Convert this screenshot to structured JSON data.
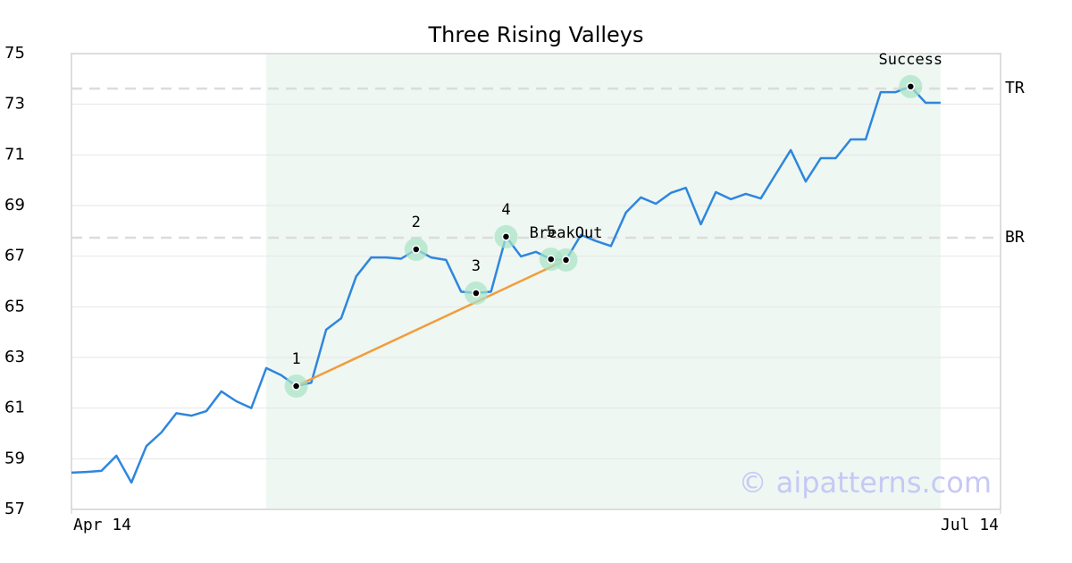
{
  "chart_data": {
    "type": "line",
    "title": "Three Rising Valleys",
    "x": [
      0,
      1,
      2,
      3,
      4,
      5,
      6,
      7,
      8,
      9,
      10,
      11,
      12,
      13,
      14,
      15,
      16,
      17,
      18,
      19,
      20,
      21,
      22,
      23,
      24,
      25,
      26,
      27,
      28,
      29,
      30,
      31,
      32,
      33,
      34,
      35,
      36,
      37,
      38,
      39,
      40,
      41,
      42,
      43,
      44,
      45,
      46,
      47,
      48,
      49,
      50,
      51,
      52,
      53,
      54,
      55,
      56,
      57,
      58
    ],
    "values": [
      58.45,
      58.48,
      58.52,
      59.12,
      58.06,
      59.5,
      60.04,
      60.8,
      60.7,
      60.88,
      61.66,
      61.27,
      61.0,
      62.58,
      62.3,
      61.87,
      62.0,
      64.1,
      64.55,
      66.2,
      66.95,
      66.95,
      66.9,
      67.27,
      66.95,
      66.85,
      65.6,
      65.54,
      65.6,
      67.77,
      66.99,
      67.17,
      66.88,
      66.85,
      67.84,
      67.6,
      67.4,
      68.72,
      69.32,
      69.07,
      69.5,
      69.7,
      68.26,
      69.53,
      69.25,
      69.46,
      69.28,
      70.24,
      71.19,
      69.95,
      70.87,
      70.87,
      71.61,
      71.61,
      73.48,
      73.48,
      73.7,
      73.06,
      73.06
    ],
    "color": "#2e86de",
    "xlim": [
      0,
      62
    ],
    "xticks": [
      {
        "value": 0,
        "label": "Apr 14"
      },
      {
        "value": 62,
        "label": "Jul 14"
      }
    ],
    "ylim": [
      57,
      75
    ],
    "yticks": [
      57,
      59,
      61,
      63,
      65,
      67,
      69,
      71,
      73,
      75
    ],
    "grid": true,
    "highlight_x": [
      13,
      58
    ],
    "highlight_color": "#eef7f2",
    "reference_lines": [
      {
        "label": "TR",
        "value": 73.62
      },
      {
        "label": "BR",
        "value": 67.73
      }
    ],
    "trend_line": {
      "x": [
        15,
        33
      ],
      "values": [
        61.87,
        66.85
      ],
      "color": "#f39c3c"
    },
    "annotations": [
      {
        "label": "1",
        "x": 15
      },
      {
        "label": "2",
        "x": 23
      },
      {
        "label": "3",
        "x": 27
      },
      {
        "label": "4",
        "x": 29
      },
      {
        "label": "5",
        "x": 32
      },
      {
        "label": "BreakOut",
        "x": 33
      },
      {
        "label": "Success",
        "x": 56
      }
    ],
    "watermark": "© aipatterns.com"
  }
}
